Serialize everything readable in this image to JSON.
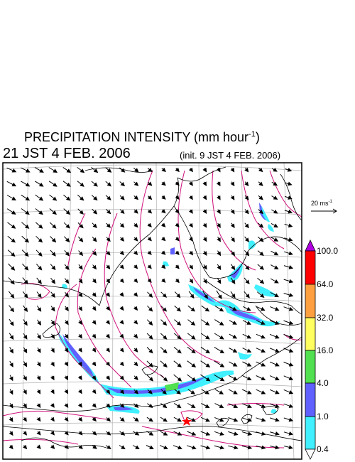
{
  "title": {
    "text": "PRECIPITATION INTENSITY (mm hour",
    "unit_exponent": "-1",
    "close": ")"
  },
  "valid_time": "21 JST 4 FEB. 2006",
  "init_time": "(init. 9 JST 4 FEB. 2006)",
  "wind_reference": {
    "label": "20 ms",
    "exponent": "-1"
  },
  "legend": {
    "levels": [
      "100.0",
      "64.0",
      "32.0",
      "16.0",
      "4.0",
      "1.0",
      "0.4"
    ],
    "colors": [
      "#ff0000",
      "#ffa040",
      "#ffff60",
      "#50e050",
      "#6060ff",
      "#40f0ff"
    ],
    "over_color": "#b000e0",
    "under_color": "#ffffff"
  },
  "colors": {
    "coast": "#000000",
    "contour": "#d0107a",
    "grid": "#b0b0b0",
    "location_marker": "#ff0000"
  },
  "icons": {
    "location_marker": "star-icon",
    "wind_vector": "arrow-icon"
  }
}
